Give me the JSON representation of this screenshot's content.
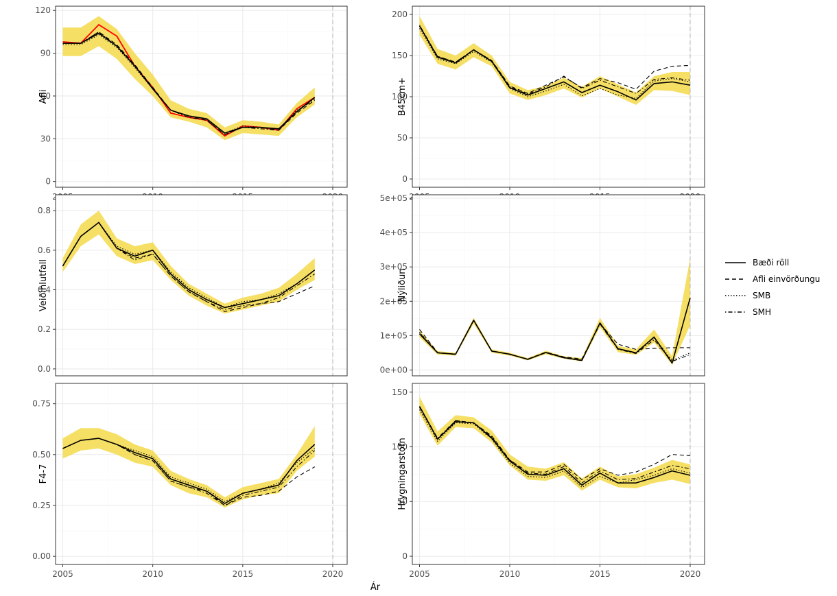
{
  "figure": {
    "xlabel": "Ár"
  },
  "legend": {
    "items": [
      {
        "label": "Bæði röll",
        "dash": "solid"
      },
      {
        "label": "Afli einvörðungu",
        "dash": "dashed"
      },
      {
        "label": "SMB",
        "dash": "dotted"
      },
      {
        "label": "SMH",
        "dash": "dotdash"
      }
    ]
  },
  "colors": {
    "band": "#f5d94a",
    "observed": "#ff0000",
    "line": "#000000",
    "panel_border": "#333333",
    "grid_major": "#ebebeb",
    "grid_minor": "#f5f5f5",
    "vline": "#bdbdbd"
  },
  "chart_data": [
    {
      "type": "line",
      "name": "afli",
      "ylabel": "Afli",
      "xlim": [
        2004.6,
        2020.8
      ],
      "ylim": [
        -4,
        123
      ],
      "yticks": [
        0,
        30,
        60,
        90,
        120
      ],
      "ytick_labels": [
        "0",
        "30",
        "60",
        "90",
        "120"
      ],
      "xticks": [
        2005,
        2010,
        2015,
        2020
      ],
      "xtick_labels": [
        "2005",
        "2010",
        "2015",
        "2020"
      ],
      "show_xticks": true,
      "vline": 2020,
      "x": [
        2005,
        2006,
        2007,
        2008,
        2009,
        2010,
        2011,
        2012,
        2013,
        2014,
        2015,
        2016,
        2017,
        2018,
        2019
      ],
      "band_upper": [
        108,
        108,
        116,
        107,
        90,
        75,
        57,
        51,
        48,
        38,
        43,
        42,
        40,
        55,
        66
      ],
      "band_lower": [
        88,
        88,
        95,
        86,
        72,
        60,
        45,
        42,
        38,
        29,
        34,
        33,
        32,
        45,
        54
      ],
      "observed": [
        98,
        97,
        110,
        102,
        81,
        66,
        48,
        45,
        43,
        32,
        39,
        38,
        36,
        51,
        59
      ],
      "series": [
        {
          "name": "Bæði röll",
          "values": [
            97,
            97,
            104,
            95,
            81,
            65,
            50,
            46,
            44,
            34,
            38,
            38,
            37,
            49,
            59
          ]
        },
        {
          "name": "Afli einvörðungu",
          "values": [
            97,
            97,
            105,
            96,
            82,
            66,
            50,
            46,
            43,
            33,
            38,
            38,
            36,
            48,
            57
          ]
        },
        {
          "name": "SMB",
          "values": [
            96,
            96,
            103,
            94,
            80,
            65,
            50,
            46,
            44,
            34,
            39,
            38,
            37,
            50,
            58
          ]
        },
        {
          "name": "SMH",
          "values": [
            97,
            97,
            105,
            95,
            81,
            65,
            50,
            45,
            43,
            33,
            38,
            37,
            36,
            49,
            58
          ]
        }
      ]
    },
    {
      "type": "line",
      "name": "b45",
      "ylabel": "B45cm+",
      "xlim": [
        2004.6,
        2020.8
      ],
      "ylim": [
        -10,
        210
      ],
      "yticks": [
        0,
        50,
        100,
        150,
        200
      ],
      "ytick_labels": [
        "0",
        "50",
        "100",
        "150",
        "200"
      ],
      "xticks": [
        2005,
        2010,
        2015,
        2020
      ],
      "xtick_labels": [
        "2005",
        "2010",
        "2015",
        "2020"
      ],
      "show_xticks": true,
      "vline": 2020,
      "x": [
        2005,
        2006,
        2007,
        2008,
        2009,
        2010,
        2011,
        2012,
        2013,
        2014,
        2015,
        2016,
        2017,
        2018,
        2019,
        2020
      ],
      "band_upper": [
        198,
        158,
        150,
        165,
        150,
        118,
        108,
        113,
        123,
        112,
        125,
        115,
        105,
        125,
        130,
        130
      ],
      "band_lower": [
        175,
        140,
        133,
        148,
        137,
        104,
        96,
        102,
        110,
        99,
        110,
        100,
        90,
        108,
        107,
        102
      ],
      "series": [
        {
          "name": "Bæði röll",
          "values": [
            186,
            148,
            141,
            157,
            143,
            111,
            102,
            110,
            118,
            105,
            114,
            106,
            96,
            116,
            118,
            114
          ]
        },
        {
          "name": "Afli einvörðungu",
          "values": [
            186,
            149,
            142,
            157,
            144,
            113,
            104,
            114,
            124,
            111,
            122,
            117,
            109,
            131,
            137,
            138
          ]
        },
        {
          "name": "SMB",
          "values": [
            183,
            146,
            140,
            155,
            142,
            110,
            100,
            107,
            115,
            101,
            110,
            102,
            98,
            119,
            122,
            118
          ]
        },
        {
          "name": "SMH",
          "values": [
            187,
            149,
            142,
            157,
            144,
            112,
            103,
            112,
            125,
            110,
            120,
            112,
            104,
            121,
            123,
            120
          ]
        }
      ]
    },
    {
      "type": "line",
      "name": "veidihlutfall",
      "ylabel": "Veiðihlutfall",
      "xlim": [
        2004.6,
        2020.8
      ],
      "ylim": [
        -0.035,
        0.88
      ],
      "yticks": [
        0,
        0.2,
        0.4,
        0.6,
        0.8
      ],
      "ytick_labels": [
        "0.0",
        "0.2",
        "0.4",
        "0.6",
        "0.8"
      ],
      "xticks": [
        2005,
        2010,
        2015,
        2020
      ],
      "xtick_labels": [
        "2005",
        "2010",
        "2015",
        "2020"
      ],
      "show_xticks": false,
      "vline": 2020,
      "x": [
        2005,
        2006,
        2007,
        2008,
        2009,
        2010,
        2011,
        2012,
        2013,
        2014,
        2015,
        2016,
        2017,
        2018,
        2019
      ],
      "band_upper": [
        0.56,
        0.73,
        0.8,
        0.66,
        0.62,
        0.64,
        0.52,
        0.43,
        0.38,
        0.33,
        0.36,
        0.38,
        0.41,
        0.48,
        0.56
      ],
      "band_lower": [
        0.49,
        0.62,
        0.68,
        0.57,
        0.53,
        0.55,
        0.45,
        0.37,
        0.32,
        0.28,
        0.3,
        0.32,
        0.34,
        0.4,
        0.45
      ],
      "series": [
        {
          "name": "Bæði röll",
          "values": [
            0.52,
            0.67,
            0.74,
            0.61,
            0.57,
            0.6,
            0.48,
            0.4,
            0.35,
            0.31,
            0.33,
            0.35,
            0.37,
            0.43,
            0.5
          ]
        },
        {
          "name": "Afli einvörðungu",
          "values": [
            0.52,
            0.67,
            0.74,
            0.61,
            0.56,
            0.58,
            0.47,
            0.39,
            0.34,
            0.29,
            0.31,
            0.33,
            0.34,
            0.38,
            0.42
          ]
        },
        {
          "name": "SMB",
          "values": [
            0.52,
            0.67,
            0.74,
            0.62,
            0.58,
            0.6,
            0.49,
            0.41,
            0.36,
            0.31,
            0.34,
            0.35,
            0.38,
            0.43,
            0.5
          ]
        },
        {
          "name": "SMH",
          "values": [
            0.52,
            0.67,
            0.74,
            0.61,
            0.55,
            0.58,
            0.47,
            0.39,
            0.34,
            0.3,
            0.32,
            0.33,
            0.36,
            0.42,
            0.48
          ]
        }
      ]
    },
    {
      "type": "line",
      "name": "nylidun",
      "ylabel": "Nýliðun",
      "xlim": [
        2004.6,
        2020.8
      ],
      "ylim": [
        -17000,
        510000
      ],
      "yticks": [
        0,
        100000,
        200000,
        300000,
        400000,
        500000
      ],
      "ytick_labels": [
        "0e+00",
        "1e+05",
        "2e+05",
        "3e+05",
        "4e+05",
        "5e+05"
      ],
      "xticks": [
        2005,
        2010,
        2015,
        2020
      ],
      "xtick_labels": [
        "2005",
        "2010",
        "2015",
        "2020"
      ],
      "show_xticks": false,
      "vline": 2020,
      "x": [
        2005,
        2006,
        2007,
        2008,
        2009,
        2010,
        2011,
        2012,
        2013,
        2014,
        2015,
        2016,
        2017,
        2018,
        2019,
        2020
      ],
      "band_upper": [
        115000,
        55000,
        50000,
        152000,
        60000,
        50000,
        35000,
        56000,
        40000,
        35000,
        152000,
        70000,
        60000,
        118000,
        40000,
        325000
      ],
      "band_lower": [
        95000,
        45000,
        42000,
        135000,
        50000,
        42000,
        28000,
        46000,
        33000,
        25000,
        125000,
        52000,
        44000,
        80000,
        15000,
        130000
      ],
      "series": [
        {
          "name": "Bæði röll",
          "values": [
            105000,
            50000,
            46000,
            145000,
            55000,
            46000,
            31000,
            51000,
            36000,
            28000,
            137000,
            62000,
            50000,
            96000,
            20000,
            210000
          ]
        },
        {
          "name": "Afli einvörðungu",
          "values": [
            118000,
            51000,
            46000,
            143000,
            56000,
            45000,
            32000,
            52000,
            38000,
            32000,
            135000,
            75000,
            60000,
            63000,
            65000,
            65000
          ]
        },
        {
          "name": "SMB",
          "values": [
            110000,
            50000,
            46000,
            145000,
            55000,
            46000,
            31000,
            51000,
            36000,
            29000,
            136000,
            62000,
            50000,
            93000,
            28000,
            50000
          ]
        },
        {
          "name": "SMH",
          "values": [
            108000,
            50000,
            45000,
            144000,
            55000,
            46000,
            31000,
            50000,
            35000,
            27000,
            134000,
            60000,
            48000,
            88000,
            25000,
            45000
          ]
        }
      ]
    },
    {
      "type": "line",
      "name": "f47",
      "ylabel": "F4-7",
      "xlim": [
        2004.6,
        2020.8
      ],
      "ylim": [
        -0.04,
        0.85
      ],
      "yticks": [
        0,
        0.25,
        0.5,
        0.75
      ],
      "ytick_labels": [
        "0.00",
        "0.25",
        "0.50",
        "0.75"
      ],
      "xticks": [
        2005,
        2010,
        2015,
        2020
      ],
      "xtick_labels": [
        "2005",
        "2010",
        "2015",
        "2020"
      ],
      "show_xticks": true,
      "vline": 2020,
      "x": [
        2005,
        2006,
        2007,
        2008,
        2009,
        2010,
        2011,
        2012,
        2013,
        2014,
        2015,
        2016,
        2017,
        2018,
        2019
      ],
      "band_upper": [
        0.58,
        0.63,
        0.63,
        0.6,
        0.55,
        0.52,
        0.42,
        0.38,
        0.35,
        0.29,
        0.34,
        0.36,
        0.38,
        0.5,
        0.64
      ],
      "band_lower": [
        0.48,
        0.52,
        0.53,
        0.5,
        0.46,
        0.44,
        0.35,
        0.31,
        0.29,
        0.24,
        0.28,
        0.3,
        0.31,
        0.42,
        0.49
      ],
      "series": [
        {
          "name": "Bæði röll",
          "values": [
            0.53,
            0.57,
            0.58,
            0.55,
            0.51,
            0.48,
            0.38,
            0.35,
            0.32,
            0.26,
            0.31,
            0.33,
            0.35,
            0.47,
            0.55
          ]
        },
        {
          "name": "Afli einvörðungu",
          "values": [
            0.53,
            0.57,
            0.58,
            0.55,
            0.5,
            0.47,
            0.37,
            0.34,
            0.32,
            0.25,
            0.29,
            0.3,
            0.32,
            0.39,
            0.44
          ]
        },
        {
          "name": "SMB",
          "values": [
            0.53,
            0.57,
            0.58,
            0.55,
            0.52,
            0.49,
            0.39,
            0.36,
            0.33,
            0.27,
            0.31,
            0.33,
            0.36,
            0.46,
            0.53
          ]
        },
        {
          "name": "SMH",
          "values": [
            0.53,
            0.57,
            0.58,
            0.55,
            0.5,
            0.47,
            0.37,
            0.34,
            0.31,
            0.25,
            0.3,
            0.32,
            0.34,
            0.44,
            0.52
          ]
        }
      ]
    },
    {
      "type": "line",
      "name": "hrygningarstofn",
      "ylabel": "Hrygningarstofn",
      "xlim": [
        2004.6,
        2020.8
      ],
      "ylim": [
        -7.5,
        158
      ],
      "yticks": [
        0,
        50,
        100,
        150
      ],
      "ytick_labels": [
        "0",
        "50",
        "100",
        "150"
      ],
      "xticks": [
        2005,
        2010,
        2015,
        2020
      ],
      "xtick_labels": [
        "2005",
        "2010",
        "2015",
        "2020"
      ],
      "show_xticks": true,
      "vline": 2020,
      "x": [
        2005,
        2006,
        2007,
        2008,
        2009,
        2010,
        2011,
        2012,
        2013,
        2014,
        2015,
        2016,
        2017,
        2018,
        2019,
        2020
      ],
      "band_upper": [
        146,
        114,
        129,
        127,
        115,
        93,
        82,
        80,
        86,
        71,
        82,
        73,
        75,
        81,
        88,
        84
      ],
      "band_lower": [
        130,
        101,
        118,
        117,
        104,
        83,
        70,
        69,
        74,
        60,
        70,
        63,
        62,
        67,
        70,
        66
      ],
      "series": [
        {
          "name": "Bæði röll",
          "values": [
            137,
            107,
            123,
            122,
            108,
            87,
            75,
            74,
            80,
            65,
            76,
            67,
            67,
            72,
            78,
            74
          ]
        },
        {
          "name": "Afli einvörðungu",
          "values": [
            136,
            107,
            124,
            122,
            110,
            88,
            77,
            77,
            84,
            70,
            80,
            74,
            77,
            84,
            93,
            92
          ]
        },
        {
          "name": "SMB",
          "values": [
            134,
            105,
            122,
            121,
            107,
            85,
            73,
            72,
            78,
            63,
            73,
            67,
            70,
            74,
            80,
            76
          ]
        },
        {
          "name": "SMH",
          "values": [
            137,
            108,
            124,
            122,
            109,
            88,
            76,
            75,
            82,
            67,
            78,
            70,
            71,
            77,
            83,
            80
          ]
        }
      ]
    }
  ]
}
